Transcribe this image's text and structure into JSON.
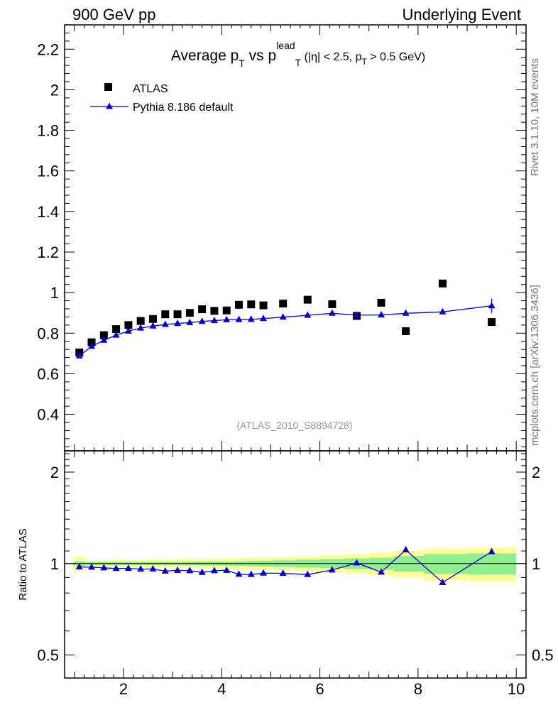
{
  "header": {
    "left": "900 GeV pp",
    "right": "Underlying Event"
  },
  "side_labels": {
    "rivet": "Rivet 3.1.10,  10M events",
    "source": "mcplots.cern.ch [arXiv:1306.3436]"
  },
  "chart_data": {
    "type": "scatter",
    "title": "Average p_T vs p_T^lead (|η| < 2.5, p_T > 0.5 GeV)",
    "analysis_id": "(ATLAS_2010_S8894728)",
    "legend_position": "top-left",
    "xlim": [
      0.8,
      10.2
    ],
    "x_ticks": [
      "2",
      "4",
      "6",
      "8",
      "10"
    ],
    "main": {
      "ylim": [
        0.22,
        2.32
      ],
      "y_ticks": [
        "0.4",
        "0.6",
        "0.8",
        "1",
        "1.2",
        "1.4",
        "1.6",
        "1.8",
        "2",
        "2.2"
      ]
    },
    "ratio": {
      "ylabel": "Ratio to ATLAS",
      "scale": "log",
      "ylim": [
        0.42,
        2.35
      ],
      "y_ticks": [
        "0.5",
        "1",
        "2"
      ]
    },
    "x": [
      1.1,
      1.35,
      1.6,
      1.85,
      2.1,
      2.35,
      2.6,
      2.85,
      3.1,
      3.35,
      3.6,
      3.85,
      4.1,
      4.35,
      4.6,
      4.85,
      5.25,
      5.75,
      6.25,
      6.75,
      7.25,
      7.75,
      8.5,
      9.5
    ],
    "series": [
      {
        "name": "ATLAS",
        "color": "#000000",
        "marker": "square",
        "values": [
          0.705,
          0.755,
          0.79,
          0.82,
          0.84,
          0.86,
          0.87,
          0.893,
          0.893,
          0.9,
          0.918,
          0.91,
          0.912,
          0.94,
          0.942,
          0.937,
          0.946,
          0.965,
          0.943,
          0.885,
          0.95,
          0.81,
          1.045,
          0.855
        ]
      },
      {
        "name": "Pythia 8.186 default",
        "color": "#0000cc",
        "marker": "triangle",
        "values": [
          0.688,
          0.735,
          0.765,
          0.79,
          0.81,
          0.825,
          0.835,
          0.843,
          0.848,
          0.852,
          0.858,
          0.862,
          0.866,
          0.867,
          0.868,
          0.872,
          0.879,
          0.888,
          0.898,
          0.889,
          0.89,
          0.898,
          0.905,
          0.935
        ]
      }
    ],
    "ratio_values": [
      0.975,
      0.973,
      0.968,
      0.963,
      0.964,
      0.959,
      0.96,
      0.944,
      0.95,
      0.947,
      0.935,
      0.947,
      0.95,
      0.922,
      0.921,
      0.93,
      0.929,
      0.92,
      0.952,
      1.005,
      0.937,
      1.109,
      0.866,
      1.094
    ],
    "ratio_bands": {
      "stat_color": "#90ee90",
      "syst_color": "#ffff99",
      "stat": [
        0.016,
        0.012,
        0.012,
        0.012,
        0.012,
        0.012,
        0.012,
        0.013,
        0.013,
        0.014,
        0.015,
        0.016,
        0.016,
        0.018,
        0.02,
        0.022,
        0.025,
        0.03,
        0.034,
        0.04,
        0.045,
        0.06,
        0.075,
        0.08
      ],
      "total": [
        0.055,
        0.024,
        0.024,
        0.025,
        0.026,
        0.027,
        0.028,
        0.029,
        0.031,
        0.032,
        0.034,
        0.036,
        0.039,
        0.042,
        0.044,
        0.046,
        0.05,
        0.057,
        0.064,
        0.075,
        0.085,
        0.1,
        0.12,
        0.13
      ]
    }
  }
}
